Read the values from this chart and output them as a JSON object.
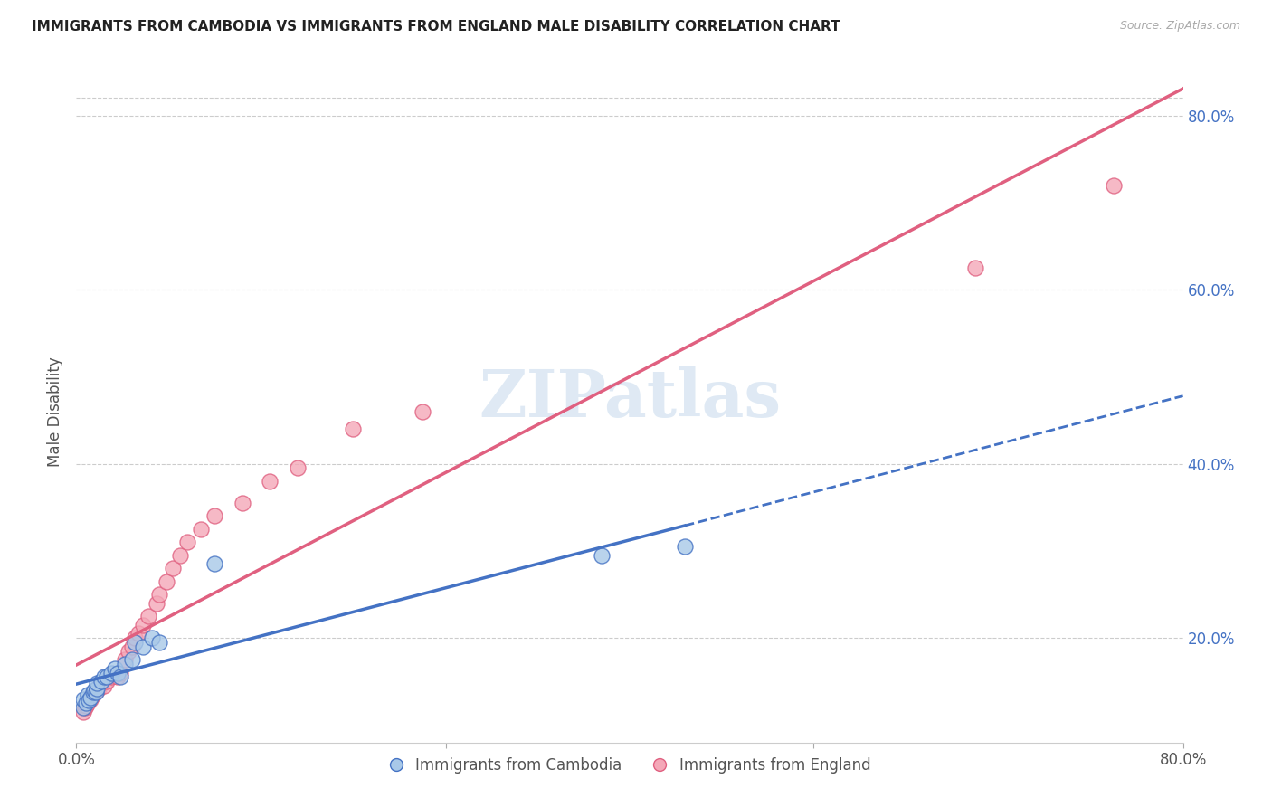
{
  "title": "IMMIGRANTS FROM CAMBODIA VS IMMIGRANTS FROM ENGLAND MALE DISABILITY CORRELATION CHART",
  "source": "Source: ZipAtlas.com",
  "ylabel": "Male Disability",
  "right_yticks": [
    "80.0%",
    "60.0%",
    "40.0%",
    "20.0%"
  ],
  "right_ytick_vals": [
    0.8,
    0.6,
    0.4,
    0.2
  ],
  "xlim": [
    0.0,
    0.8
  ],
  "ylim": [
    0.08,
    0.84
  ],
  "legend_footer1": "Immigrants from Cambodia",
  "legend_footer2": "Immigrants from England",
  "color_cambodia": "#a8c8e8",
  "color_england": "#f4a8b8",
  "line_color_cambodia": "#4472c4",
  "line_color_england": "#e06080",
  "watermark": "ZIPatlas",
  "cambodia_x": [
    0.005,
    0.005,
    0.007,
    0.008,
    0.009,
    0.01,
    0.012,
    0.013,
    0.014,
    0.015,
    0.015,
    0.018,
    0.02,
    0.022,
    0.025,
    0.028,
    0.03,
    0.032,
    0.035,
    0.04,
    0.042,
    0.048,
    0.055,
    0.06,
    0.1,
    0.38,
    0.44
  ],
  "cambodia_y": [
    0.12,
    0.13,
    0.125,
    0.135,
    0.128,
    0.132,
    0.138,
    0.14,
    0.138,
    0.142,
    0.148,
    0.15,
    0.155,
    0.155,
    0.16,
    0.165,
    0.16,
    0.155,
    0.17,
    0.175,
    0.195,
    0.19,
    0.2,
    0.195,
    0.285,
    0.295,
    0.305
  ],
  "england_x": [
    0.005,
    0.006,
    0.007,
    0.008,
    0.009,
    0.01,
    0.012,
    0.013,
    0.015,
    0.016,
    0.018,
    0.02,
    0.022,
    0.025,
    0.028,
    0.03,
    0.032,
    0.035,
    0.038,
    0.04,
    0.042,
    0.045,
    0.048,
    0.052,
    0.058,
    0.06,
    0.065,
    0.07,
    0.075,
    0.08,
    0.09,
    0.1,
    0.12,
    0.14,
    0.16,
    0.2,
    0.25,
    0.65,
    0.75
  ],
  "england_y": [
    0.115,
    0.12,
    0.122,
    0.125,
    0.128,
    0.13,
    0.135,
    0.138,
    0.14,
    0.142,
    0.148,
    0.145,
    0.15,
    0.155,
    0.158,
    0.155,
    0.16,
    0.175,
    0.185,
    0.19,
    0.2,
    0.205,
    0.215,
    0.225,
    0.24,
    0.25,
    0.265,
    0.28,
    0.295,
    0.31,
    0.325,
    0.34,
    0.355,
    0.38,
    0.395,
    0.44,
    0.46,
    0.625,
    0.72
  ]
}
